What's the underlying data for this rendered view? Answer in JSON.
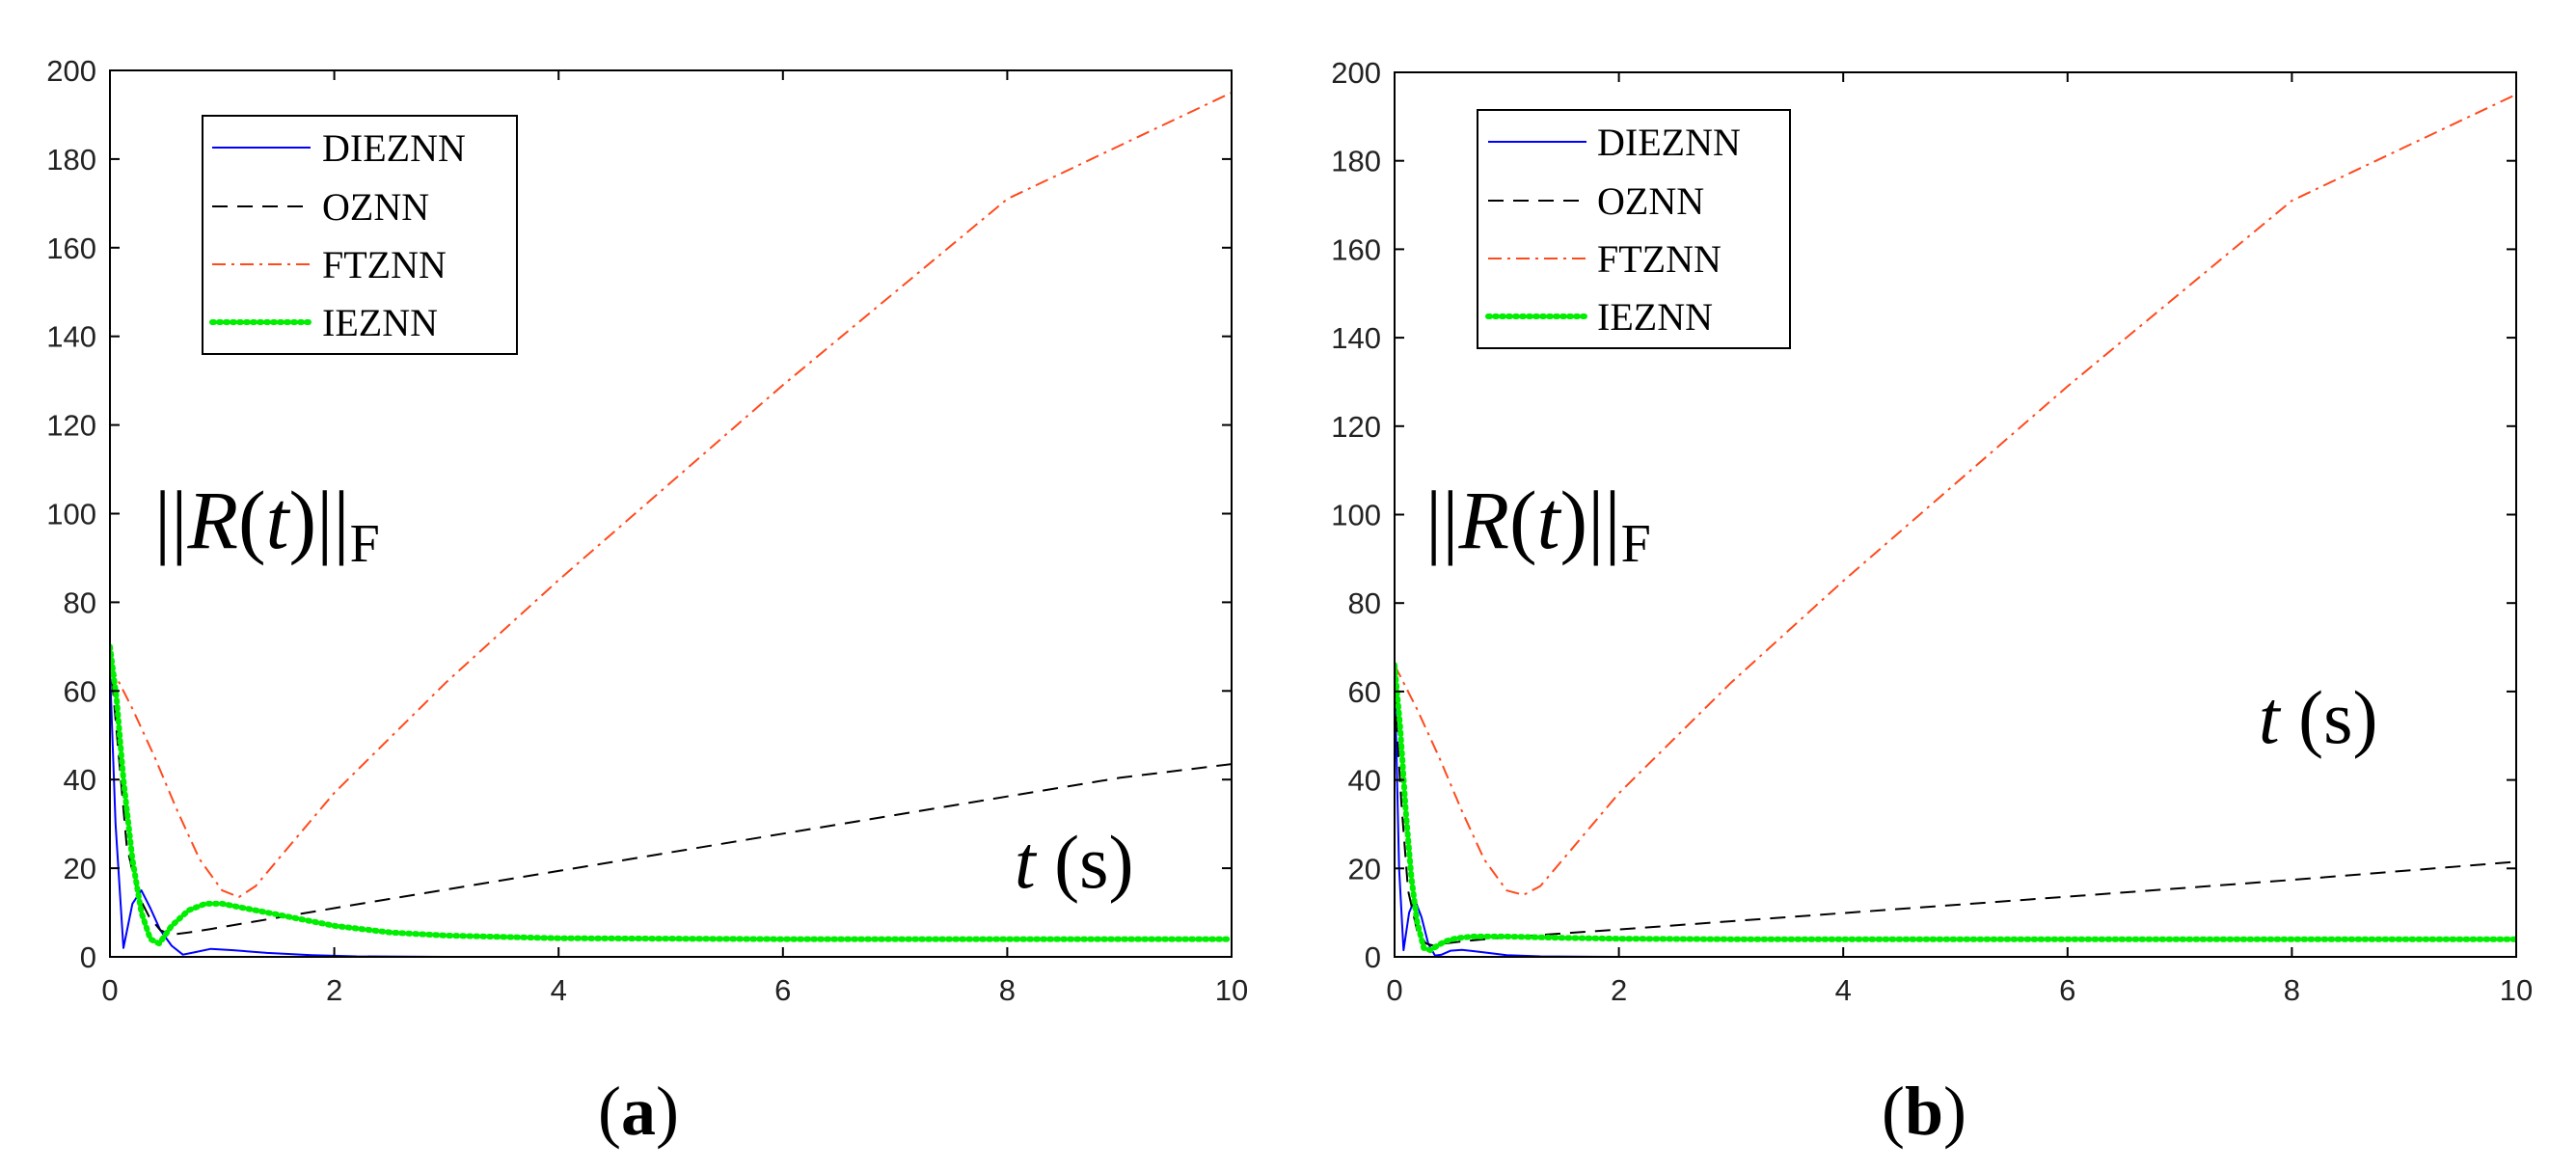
{
  "figure": {
    "panels": [
      {
        "caption_open": "(",
        "caption_letter": "a",
        "caption_close": ")",
        "ylabel_parts": {
          "open_bars": "||",
          "symbol": "R",
          "open_paren": "(",
          "var": "t",
          "close_paren": ")",
          "close_bars": "||",
          "subscript": "F"
        },
        "xlabel_parts": {
          "var": "t",
          "unit": "(s)"
        }
      },
      {
        "caption_open": "(",
        "caption_letter": "b",
        "caption_close": ")",
        "ylabel_parts": {
          "open_bars": "||",
          "symbol": "R",
          "open_paren": "(",
          "var": "t",
          "close_paren": ")",
          "close_bars": "||",
          "subscript": "F"
        },
        "xlabel_parts": {
          "var": "t",
          "unit": "(s)"
        }
      }
    ]
  },
  "chart_data": [
    {
      "type": "line",
      "title": "",
      "xlabel": "t (s)",
      "ylabel": "||R(t)||F",
      "xlim": [
        0,
        10
      ],
      "ylim": [
        0,
        200
      ],
      "xticks": [
        0,
        2,
        4,
        6,
        8,
        10
      ],
      "yticks": [
        0,
        20,
        40,
        60,
        80,
        100,
        120,
        140,
        160,
        180,
        200
      ],
      "legend_position": "top-left",
      "series": [
        {
          "name": "DIEZNN",
          "color": "#0000ff",
          "style": "solid",
          "x": [
            0,
            0.05,
            0.12,
            0.2,
            0.28,
            0.36,
            0.45,
            0.55,
            0.65,
            0.75,
            0.9,
            1.1,
            1.4,
            1.8,
            2.2,
            3,
            5,
            10
          ],
          "y": [
            65,
            30,
            2,
            12,
            15,
            11,
            6,
            2.5,
            0.5,
            1,
            1.8,
            1.5,
            0.9,
            0.4,
            0.1,
            0,
            0,
            0
          ]
        },
        {
          "name": "OZNN",
          "color": "#000000",
          "style": "dashed",
          "x": [
            0,
            0.08,
            0.15,
            0.25,
            0.35,
            0.45,
            0.55,
            0.7,
            0.9,
            1.2,
            1.6,
            2,
            3,
            4,
            5,
            6,
            7,
            8,
            9,
            10
          ],
          "y": [
            68,
            45,
            25,
            14,
            9,
            6,
            5,
            5.5,
            6.3,
            7.6,
            9.3,
            11,
            15.2,
            19.4,
            23.6,
            27.8,
            32,
            36.2,
            40.4,
            43.5
          ]
        },
        {
          "name": "FTZNN",
          "color": "#ff4a1c",
          "style": "dashdot",
          "x": [
            0,
            0.2,
            0.4,
            0.6,
            0.8,
            1.0,
            1.15,
            1.3,
            1.5,
            2,
            3,
            4,
            5,
            6,
            7,
            8,
            9,
            10
          ],
          "y": [
            66,
            56,
            45,
            33,
            22,
            15,
            13.5,
            16,
            22,
            37,
            62,
            85,
            107,
            129,
            150,
            171,
            183,
            195
          ]
        },
        {
          "name": "IEZNN",
          "color": "#00ee00",
          "style": "dotted",
          "x": [
            0,
            0.06,
            0.12,
            0.2,
            0.28,
            0.36,
            0.44,
            0.55,
            0.7,
            0.85,
            1.0,
            1.2,
            1.5,
            2,
            2.5,
            3,
            4,
            6,
            10
          ],
          "y": [
            70,
            58,
            40,
            22,
            10,
            4,
            3,
            7,
            10.5,
            12,
            12,
            11,
            9.5,
            7,
            5.5,
            4.8,
            4.2,
            4,
            4
          ]
        }
      ]
    },
    {
      "type": "line",
      "title": "",
      "xlabel": "t (s)",
      "ylabel": "||R(t)||F",
      "xlim": [
        0,
        10
      ],
      "ylim": [
        0,
        200
      ],
      "xticks": [
        0,
        2,
        4,
        6,
        8,
        10
      ],
      "yticks": [
        0,
        20,
        40,
        60,
        80,
        100,
        120,
        140,
        160,
        180,
        200
      ],
      "legend_position": "top-left",
      "series": [
        {
          "name": "DIEZNN",
          "color": "#0000ff",
          "style": "solid",
          "x": [
            0,
            0.04,
            0.08,
            0.13,
            0.18,
            0.24,
            0.3,
            0.36,
            0.42,
            0.5,
            0.6,
            0.8,
            1.0,
            1.3,
            2,
            10
          ],
          "y": [
            65,
            20,
            1.5,
            10,
            13,
            9,
            3,
            0.3,
            0.5,
            1.4,
            1.6,
            1,
            0.4,
            0.1,
            0,
            0
          ]
        },
        {
          "name": "OZNN",
          "color": "#000000",
          "style": "dashed",
          "x": [
            0,
            0.06,
            0.12,
            0.2,
            0.28,
            0.35,
            0.45,
            0.6,
            0.8,
            1,
            2,
            4,
            6,
            8,
            10
          ],
          "y": [
            60,
            35,
            15,
            6,
            3,
            2.5,
            3,
            3.5,
            4,
            4.4,
            6.2,
            9.9,
            13.6,
            17.4,
            21.5
          ]
        },
        {
          "name": "FTZNN",
          "color": "#ff4a1c",
          "style": "dashdot",
          "x": [
            0,
            0.2,
            0.4,
            0.6,
            0.8,
            1.0,
            1.15,
            1.3,
            1.5,
            2,
            3,
            4,
            5,
            6,
            7,
            8,
            9,
            10
          ],
          "y": [
            66,
            56,
            45,
            33,
            22,
            15,
            14,
            16,
            22,
            37,
            62,
            85,
            107,
            129,
            150,
            171,
            183,
            195
          ]
        },
        {
          "name": "IEZNN",
          "color": "#00ee00",
          "style": "dotted",
          "x": [
            0,
            0.05,
            0.1,
            0.15,
            0.2,
            0.26,
            0.32,
            0.38,
            0.45,
            0.55,
            0.7,
            1.0,
            1.5,
            2,
            3,
            5,
            10
          ],
          "y": [
            66,
            52,
            33,
            18,
            8,
            2,
            1.5,
            2.5,
            3.5,
            4.2,
            4.6,
            4.6,
            4.3,
            4.1,
            4,
            4,
            4
          ]
        }
      ]
    }
  ]
}
